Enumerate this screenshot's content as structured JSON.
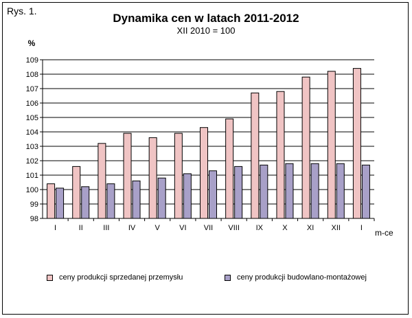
{
  "figure_label": "Rys. 1.",
  "title": "Dynamika cen w latach 2011-2012",
  "subtitle": "XII 2010 = 100",
  "chart_data": {
    "type": "bar",
    "title": "Dynamika cen w latach 2011-2012",
    "subtitle": "XII 2010 = 100",
    "ylabel": "%",
    "xlabel": "m-ce",
    "ylim": [
      98,
      109
    ],
    "yticks": [
      98,
      99,
      100,
      101,
      102,
      103,
      104,
      105,
      106,
      107,
      108,
      109
    ],
    "grid": true,
    "legend_position": "bottom",
    "categories": [
      "I",
      "II",
      "III",
      "IV",
      "V",
      "VI",
      "VII",
      "VIII",
      "IX",
      "X",
      "XI",
      "XII",
      "I"
    ],
    "series": [
      {
        "name": "ceny produkcji sprzedanej przemysłu",
        "color": "#f0c4c4",
        "values": [
          100.4,
          101.6,
          103.2,
          103.9,
          103.6,
          103.9,
          104.3,
          104.9,
          106.7,
          106.8,
          107.8,
          108.2,
          108.4
        ]
      },
      {
        "name": "ceny produkcji budowlano-montażowej",
        "color": "#a8a0c8",
        "values": [
          100.1,
          100.2,
          100.4,
          100.6,
          100.8,
          101.1,
          101.3,
          101.6,
          101.7,
          101.8,
          101.8,
          101.8,
          101.7
        ]
      }
    ]
  }
}
